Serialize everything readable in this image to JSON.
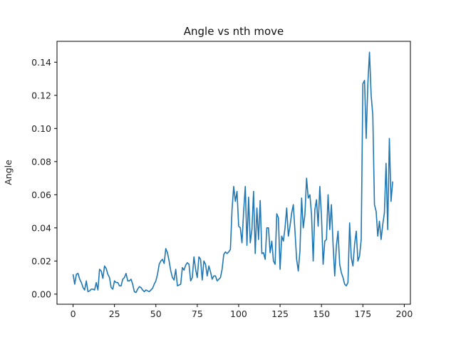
{
  "chart_data": {
    "type": "line",
    "title": "Angle vs nth move",
    "xlabel": "",
    "ylabel": "Angle",
    "xlim": [
      -9.7,
      203.7
    ],
    "ylim": [
      -0.0061,
      0.1526
    ],
    "xticks": [
      0,
      25,
      50,
      75,
      100,
      125,
      150,
      175,
      200
    ],
    "yticks": [
      0.0,
      0.02,
      0.04,
      0.06,
      0.08,
      0.1,
      0.12,
      0.14
    ],
    "ytick_labels": [
      "0.00",
      "0.02",
      "0.04",
      "0.06",
      "0.08",
      "0.10",
      "0.12",
      "0.14"
    ],
    "grid": false,
    "series": [
      {
        "color": "#1f77b4",
        "x_start": 0,
        "values": [
          0.012,
          0.006,
          0.012,
          0.0125,
          0.009,
          0.007,
          0.004,
          0.0025,
          0.008,
          0.0015,
          0.002,
          0.003,
          0.003,
          0.0025,
          0.007,
          0.0025,
          0.015,
          0.014,
          0.0095,
          0.017,
          0.0155,
          0.012,
          0.01,
          0.004,
          0.003,
          0.008,
          0.007,
          0.007,
          0.005,
          0.005,
          0.009,
          0.01,
          0.0125,
          0.008,
          0.008,
          0.009,
          0.006,
          0.0015,
          0.001,
          0.003,
          0.0045,
          0.004,
          0.0025,
          0.0015,
          0.0025,
          0.002,
          0.0015,
          0.0025,
          0.0035,
          0.006,
          0.008,
          0.012,
          0.018,
          0.02,
          0.021,
          0.0185,
          0.0275,
          0.025,
          0.02,
          0.014,
          0.01,
          0.0085,
          0.015,
          0.005,
          0.0055,
          0.006,
          0.016,
          0.0145,
          0.0175,
          0.019,
          0.018,
          0.008,
          0.01,
          0.0225,
          0.015,
          0.01,
          0.0225,
          0.021,
          0.0085,
          0.02,
          0.018,
          0.011,
          0.017,
          0.0135,
          0.009,
          0.011,
          0.011,
          0.008,
          0.009,
          0.01,
          0.015,
          0.024,
          0.0255,
          0.0245,
          0.0255,
          0.027,
          0.051,
          0.065,
          0.056,
          0.062,
          0.041,
          0.04,
          0.031,
          0.05,
          0.065,
          0.0295,
          0.0585,
          0.031,
          0.039,
          0.062,
          0.0245,
          0.052,
          0.033,
          0.0565,
          0.0245,
          0.025,
          0.021,
          0.04,
          0.04,
          0.025,
          0.032,
          0.02,
          0.018,
          0.0485,
          0.046,
          0.015,
          0.035,
          0.032,
          0.04,
          0.052,
          0.035,
          0.041,
          0.049,
          0.054,
          0.038,
          0.021,
          0.014,
          0.026,
          0.058,
          0.04,
          0.048,
          0.07,
          0.058,
          0.06,
          0.048,
          0.02,
          0.051,
          0.057,
          0.041,
          0.065,
          0.047,
          0.018,
          0.032,
          0.033,
          0.06,
          0.039,
          0.054,
          0.03,
          0.011,
          0.029,
          0.038,
          0.018,
          0.013,
          0.01,
          0.006,
          0.005,
          0.007,
          0.043,
          0.022,
          0.017,
          0.03,
          0.038,
          0.02,
          0.023,
          0.033,
          0.127,
          0.129,
          0.094,
          0.127,
          0.146,
          0.12,
          0.108,
          0.054,
          0.05,
          0.035,
          0.044,
          0.033,
          0.042,
          0.049,
          0.079,
          0.039,
          0.094,
          0.056,
          0.068
        ]
      }
    ]
  }
}
